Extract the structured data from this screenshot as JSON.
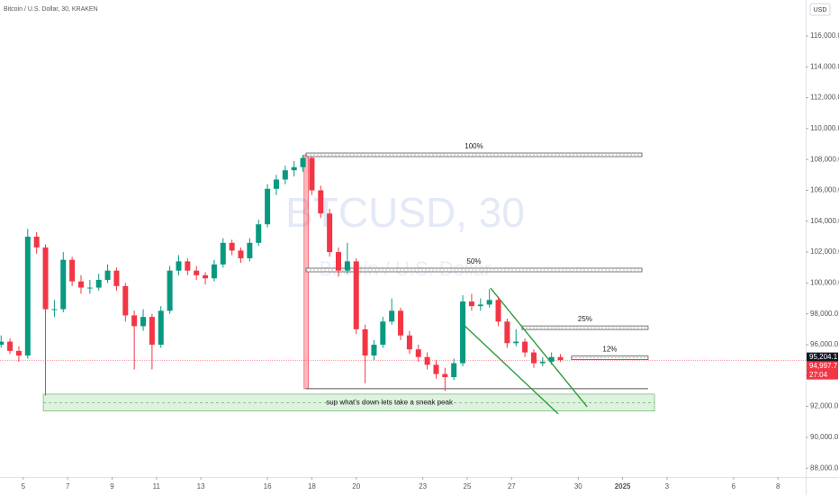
{
  "chart_data": {
    "type": "candlestick",
    "title": "Bitcoin / U.S. Dollar, 30, KRAKEN",
    "currency": "USD",
    "watermark": {
      "symbol": "BTCUSD, 30",
      "description": "Bitcoin / U.S. Dollar"
    },
    "up_color": "#089981",
    "down_color": "#f23645",
    "x": [
      4.0,
      4.4,
      4.8,
      5.2,
      5.6,
      6.0,
      6.4,
      6.8,
      7.2,
      7.6,
      8.0,
      8.4,
      8.8,
      9.2,
      9.6,
      10.0,
      10.4,
      10.8,
      11.2,
      11.6,
      12.0,
      12.4,
      12.8,
      13.2,
      13.6,
      14.0,
      14.4,
      14.8,
      15.2,
      15.6,
      16.0,
      16.4,
      16.8,
      17.2,
      17.6,
      18.0,
      18.4,
      18.8,
      19.2,
      19.6,
      20.0,
      20.4,
      20.8,
      21.2,
      21.6,
      22.0,
      22.4,
      22.8,
      23.2,
      23.6,
      24.0,
      24.4,
      24.8,
      25.2,
      25.6,
      26.0,
      26.4,
      26.8,
      27.2,
      27.6,
      28.0,
      28.4,
      28.8,
      29.2
    ],
    "open": [
      96000,
      96200,
      95600,
      95300,
      103000,
      102300,
      98300,
      98300,
      101500,
      100100,
      99700,
      99700,
      100200,
      100800,
      99800,
      97900,
      97200,
      97800,
      96000,
      98200,
      100800,
      101400,
      100800,
      100500,
      100300,
      101200,
      102600,
      102100,
      101600,
      102600,
      103800,
      106100,
      106700,
      107300,
      107500,
      108100,
      106000,
      104500,
      102000,
      100800,
      101400,
      97000,
      95300,
      96000,
      97500,
      98200,
      96600,
      95700,
      95200,
      94700,
      94100,
      93900,
      94800,
      98800,
      98500,
      98600,
      98900,
      97500,
      96100,
      96200,
      95500,
      94800,
      94900,
      95200
    ],
    "high": [
      96600,
      96400,
      95900,
      103500,
      103300,
      102500,
      98900,
      102000,
      101700,
      100500,
      100200,
      100600,
      101200,
      101000,
      100000,
      98200,
      98300,
      98000,
      98500,
      101100,
      101800,
      101600,
      101100,
      100700,
      101500,
      102900,
      102800,
      102300,
      102900,
      104100,
      106400,
      107000,
      107600,
      107900,
      108300,
      108200,
      106300,
      104800,
      102300,
      102600,
      101600,
      97300,
      96300,
      97800,
      99000,
      98400,
      96900,
      96000,
      95500,
      95000,
      94500,
      95100,
      99200,
      99300,
      99000,
      99600,
      99100,
      97700,
      97000,
      96400,
      95700,
      95200,
      95500,
      95400
    ],
    "low": [
      95800,
      95400,
      94900,
      95100,
      101900,
      92700,
      97800,
      98100,
      99800,
      99300,
      99300,
      99500,
      100000,
      99500,
      97500,
      94400,
      96900,
      94400,
      95800,
      98000,
      100500,
      100500,
      100200,
      99900,
      100100,
      101000,
      101800,
      101300,
      101400,
      102400,
      103600,
      105700,
      106400,
      106900,
      107200,
      105700,
      104200,
      101700,
      100400,
      100600,
      96700,
      93500,
      95000,
      95800,
      97300,
      96300,
      95400,
      94900,
      94400,
      93800,
      93000,
      93700,
      94600,
      98200,
      98200,
      98400,
      97200,
      95800,
      95900,
      95200,
      94500,
      94600,
      94700,
      94900
    ],
    "close": [
      96200,
      95600,
      95300,
      103000,
      102300,
      98300,
      98300,
      101500,
      100100,
      99700,
      99700,
      100200,
      100800,
      99800,
      97900,
      97200,
      97800,
      96000,
      98200,
      100800,
      101400,
      100800,
      100500,
      100300,
      101200,
      102600,
      102100,
      101600,
      102600,
      103800,
      106100,
      106700,
      107300,
      107500,
      108100,
      106000,
      104500,
      102000,
      100800,
      101400,
      97000,
      95300,
      96000,
      97500,
      98200,
      96600,
      95700,
      95200,
      94700,
      94100,
      93900,
      94800,
      98800,
      98500,
      98600,
      98900,
      97500,
      96100,
      96200,
      95500,
      94800,
      94900,
      95200,
      95000
    ],
    "xlim": [
      3.95,
      40.25
    ],
    "xticks": [
      5,
      7,
      9,
      11,
      13,
      16,
      18,
      20,
      23,
      25,
      27,
      30,
      {
        "value": 32,
        "label": "2025"
      },
      {
        "value": 34,
        "label": "3"
      },
      {
        "value": 37,
        "label": "6"
      },
      {
        "value": 39,
        "label": "8"
      }
    ],
    "ylim": [
      87430,
      118330
    ],
    "yticks": [
      {
        "value": 88000,
        "label": "88,000.0"
      },
      {
        "value": 90000,
        "label": "90,000.0"
      },
      {
        "value": 92000,
        "label": "92,000.0"
      },
      {
        "value": 94000,
        "label": "94,000.0"
      },
      {
        "value": 96000,
        "label": "96,000.0"
      },
      {
        "value": 98000,
        "label": "98,000.0"
      },
      {
        "value": 100000,
        "label": "100,000.0"
      },
      {
        "value": 102000,
        "label": "102,000.0"
      },
      {
        "value": 104000,
        "label": "104,000.0"
      },
      {
        "value": 106000,
        "label": "106,000.0"
      },
      {
        "value": 108000,
        "label": "108,000.0"
      },
      {
        "value": 110000,
        "label": "110,000.0"
      },
      {
        "value": 112000,
        "label": "112,000.0"
      },
      {
        "value": 114000,
        "label": "114,000.0"
      },
      {
        "value": 116000,
        "label": "116,000.0"
      }
    ],
    "bar_close": {
      "value": 95204.1,
      "label": "95,204.1"
    },
    "last_price": {
      "value": 94997.7,
      "label": "94,997.7"
    },
    "countdown": "27:04",
    "levels": [
      {
        "label": "100%",
        "price": 108300,
        "from": 17.74,
        "to": 32.87
      },
      {
        "label": "50%",
        "price": 100840,
        "from": 17.74,
        "to": 32.87
      },
      {
        "label": "25%",
        "price": 97100,
        "from": 27.47,
        "to": 33.15
      },
      {
        "label": "12%",
        "price": 95150,
        "from": 29.7,
        "to": 33.15
      }
    ],
    "base_line": {
      "price": 93150,
      "from": 17.74,
      "to": 33.15
    },
    "range_box": {
      "from": 17.65,
      "to": 17.85,
      "top": 108300,
      "bottom": 93150
    },
    "zone": {
      "text": "sup what's down lets take a sneak peak",
      "top": 92800,
      "bottom": 91700,
      "from": 5.9,
      "to": 33.44
    },
    "trendlines": [
      {
        "from": [
          26.05,
          99670
        ],
        "to": [
          30.4,
          91980
        ]
      },
      {
        "from": [
          24.88,
          97230
        ],
        "to": [
          29.1,
          91520
        ]
      }
    ]
  }
}
